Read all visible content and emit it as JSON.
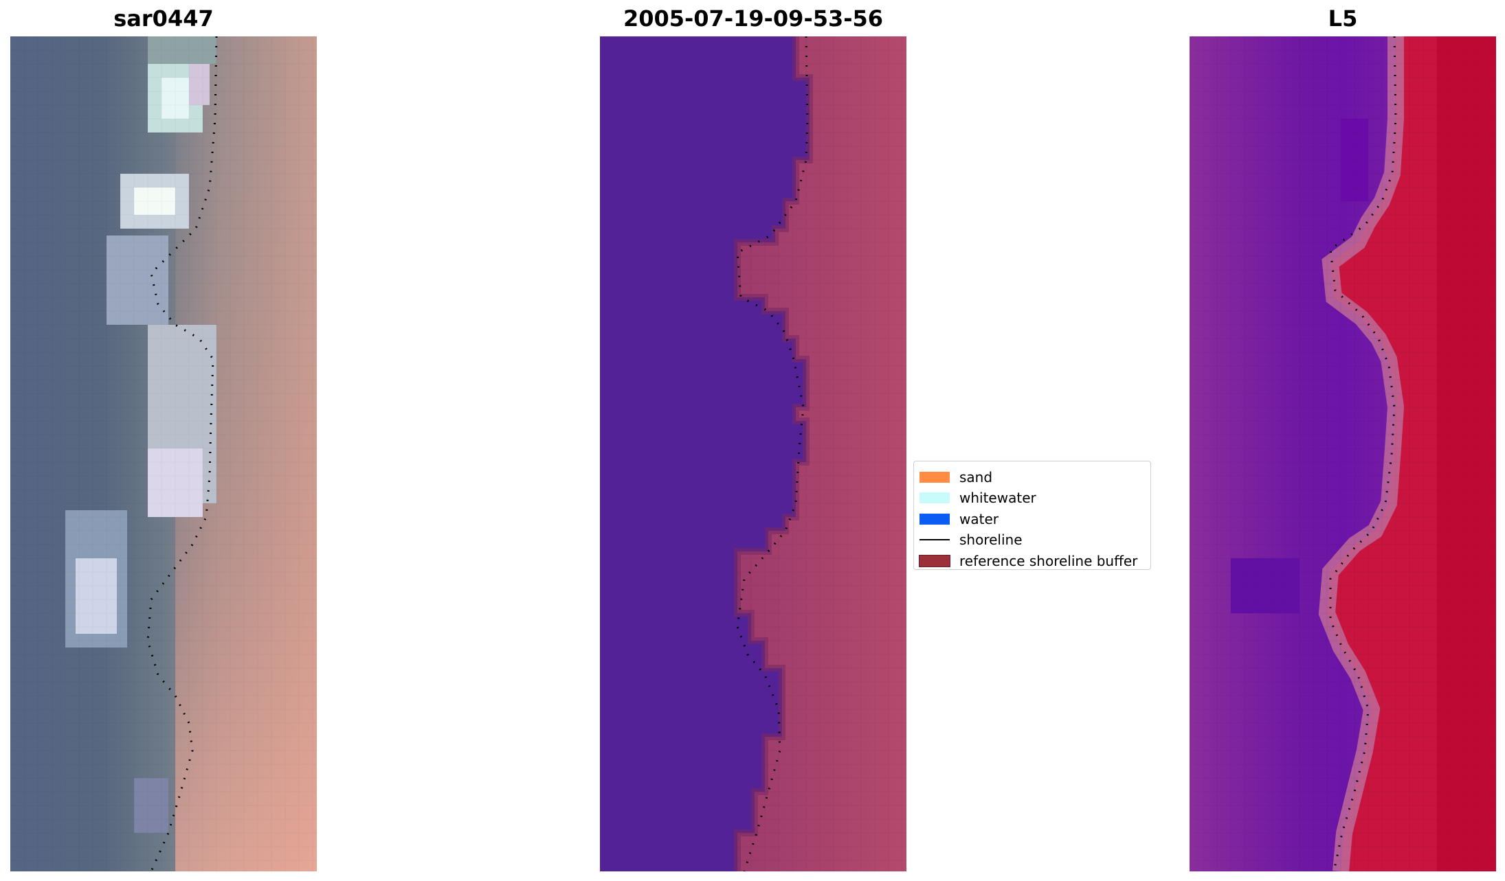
{
  "panels": [
    {
      "title": "sar0447"
    },
    {
      "title": "2005-07-19-09-53-56"
    },
    {
      "title": "L5"
    }
  ],
  "legend": {
    "items": [
      {
        "label": "sand",
        "color": "#ff8c42",
        "kind": "patch"
      },
      {
        "label": "whitewater",
        "color": "#c8fcfc",
        "kind": "patch"
      },
      {
        "label": "water",
        "color": "#0a5cf5",
        "kind": "patch"
      },
      {
        "label": "shoreline",
        "color": "#000000",
        "kind": "line"
      },
      {
        "label": "reference shoreline buffer",
        "color": "#9b3039",
        "kind": "patch"
      }
    ]
  }
}
